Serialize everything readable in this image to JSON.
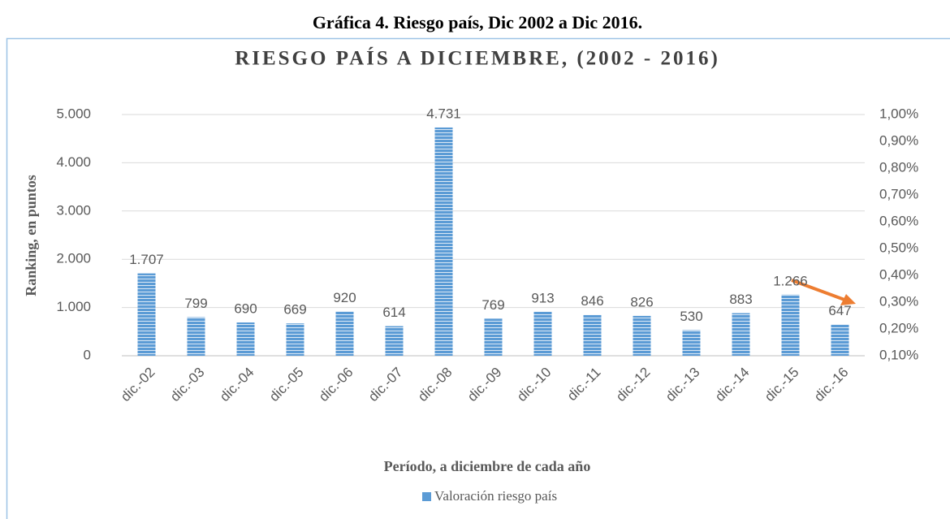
{
  "chart_data": {
    "type": "bar",
    "caption": "Gráfica 4. Riesgo país, Dic 2002 a Dic 2016.",
    "title": "RIESGO PAÍS A DICIEMBRE, (2002 - 2016)",
    "y_label": "Ranking, en puntos",
    "x_label": "Período, a diciembre de cada año",
    "categories": [
      "dic.-02",
      "dic.-03",
      "dic.-04",
      "dic.-05",
      "dic.-06",
      "dic.-07",
      "dic.-08",
      "dic.-09",
      "dic.-10",
      "dic.-11",
      "dic.-12",
      "dic.-13",
      "dic.-14",
      "dic.-15",
      "dic.-16"
    ],
    "series": [
      {
        "name": "Valoración riesgo país",
        "color": "#5b9bd5",
        "values": [
          1707,
          799,
          690,
          669,
          920,
          614,
          4731,
          769,
          913,
          846,
          826,
          530,
          883,
          1266,
          647
        ],
        "value_labels": [
          "1.707",
          "799",
          "690",
          "669",
          "920",
          "614",
          "4.731",
          "769",
          "913",
          "846",
          "826",
          "530",
          "883",
          "1.266",
          "647"
        ]
      }
    ],
    "ylim": [
      0,
      5000
    ],
    "yticks": [
      0,
      {
        "value": 1000,
        "label": "1.000"
      },
      {
        "value": 2000,
        "label": "2.000"
      },
      {
        "value": 3000,
        "label": "3.000"
      },
      {
        "value": 4000,
        "label": "4.000"
      },
      {
        "value": 5000,
        "label": "5.000"
      }
    ],
    "y2lim": [
      0.1,
      1.0
    ],
    "y2ticks": [
      {
        "value": 0.1,
        "label": "0,10%"
      },
      {
        "value": 0.2,
        "label": "0,20%"
      },
      {
        "value": 0.3,
        "label": "0,30%"
      },
      {
        "value": 0.4,
        "label": "0,40%"
      },
      {
        "value": 0.5,
        "label": "0,50%"
      },
      {
        "value": 0.6,
        "label": "0,60%"
      },
      {
        "value": 0.7,
        "label": "0,70%"
      },
      {
        "value": 0.8,
        "label": "0,80%"
      },
      {
        "value": 0.9,
        "label": "0,90%"
      },
      {
        "value": 1.0,
        "label": "1,00%"
      }
    ],
    "grid": true,
    "legend": "bottom"
  }
}
